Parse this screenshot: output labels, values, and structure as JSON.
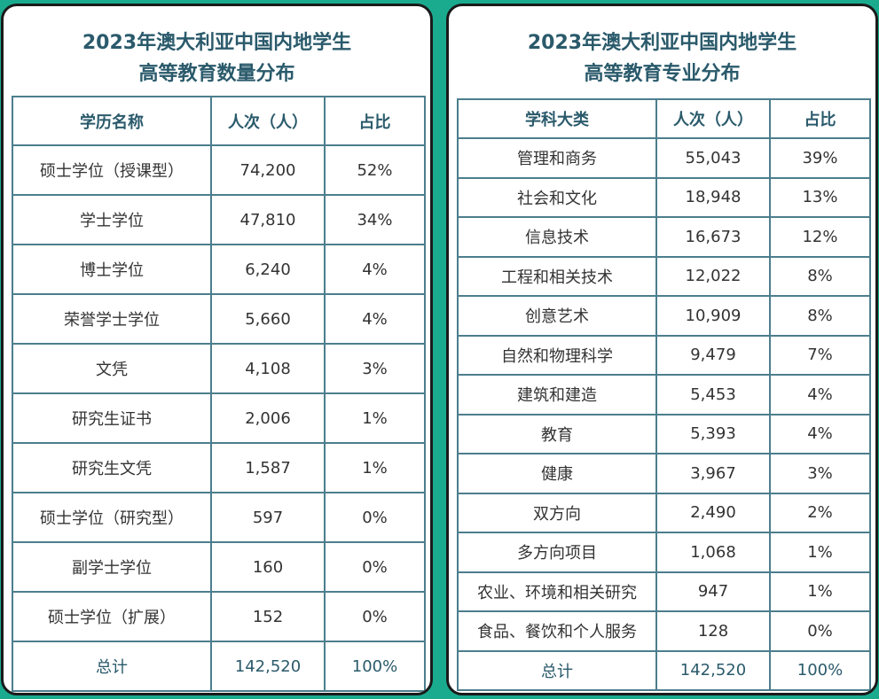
{
  "left_card": {
    "title_line1": "2023年澳大利亚中国内地学生",
    "title_line2": "高等教育数量分布",
    "headers": [
      "学历名称",
      "人次（人）",
      "占比"
    ],
    "rows": [
      [
        "硕士学位（授课型）",
        "74,200",
        "52%"
      ],
      [
        "学士学位",
        "47,810",
        "34%"
      ],
      [
        "博士学位",
        "6,240",
        "4%"
      ],
      [
        "荣誉学士学位",
        "5,660",
        "4%"
      ],
      [
        "文凭",
        "4,108",
        "3%"
      ],
      [
        "研究生证书",
        "2,006",
        "1%"
      ],
      [
        "研究生文凭",
        "1,587",
        "1%"
      ],
      [
        "硕士学位（研究型）",
        "597",
        "0%"
      ],
      [
        "副学士学位",
        "160",
        "0%"
      ],
      [
        "硕士学位（扩展）",
        "152",
        "0%"
      ]
    ],
    "total": [
      "总计",
      "142,520",
      "100%"
    ]
  },
  "right_card": {
    "title_line1": "2023年澳大利亚中国内地学生",
    "title_line2": "高等教育专业分布",
    "headers": [
      "学科大类",
      "人次（人）",
      "占比"
    ],
    "rows": [
      [
        "管理和商务",
        "55,043",
        "39%"
      ],
      [
        "社会和文化",
        "18,948",
        "13%"
      ],
      [
        "信息技术",
        "16,673",
        "12%"
      ],
      [
        "工程和相关技术",
        "12,022",
        "8%"
      ],
      [
        "创意艺术",
        "10,909",
        "8%"
      ],
      [
        "自然和物理科学",
        "9,479",
        "7%"
      ],
      [
        "建筑和建造",
        "5,453",
        "4%"
      ],
      [
        "教育",
        "5,393",
        "4%"
      ],
      [
        "健康",
        "3,967",
        "3%"
      ],
      [
        "双方向",
        "2,490",
        "2%"
      ],
      [
        "多方向项目",
        "1,068",
        "1%"
      ],
      [
        "农业、环境和相关研究",
        "947",
        "1%"
      ],
      [
        "食品、餐饮和个人服务",
        "128",
        "0%"
      ]
    ],
    "total": [
      "总计",
      "142,520",
      "100%"
    ]
  }
}
